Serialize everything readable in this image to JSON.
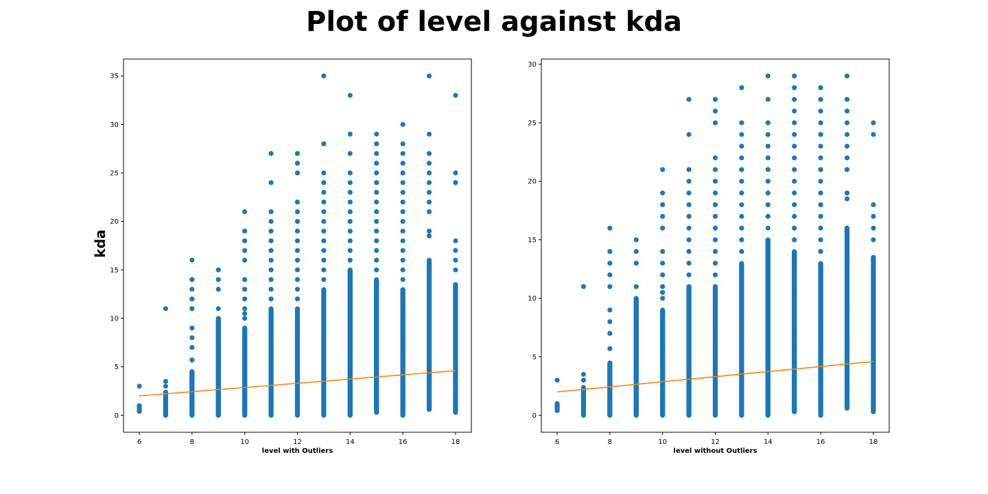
{
  "suptitle": "Plot of level against kda",
  "chart_data": [
    {
      "type": "scatter",
      "title": "",
      "xlabel": "level with Outliers",
      "ylabel": "kda",
      "xlim": [
        5.4,
        18.6
      ],
      "ylim": [
        -1.75,
        36.75
      ],
      "xticks": [
        6,
        8,
        10,
        12,
        14,
        16,
        18
      ],
      "yticks": [
        0,
        5,
        10,
        15,
        20,
        25,
        30,
        35
      ],
      "grid": false,
      "colors": {
        "points": "#1f77b4",
        "fit_line": "#ff7f0e"
      },
      "points": {
        "x": [
          6,
          7,
          8,
          9,
          10,
          11,
          12,
          13,
          14,
          15,
          16,
          17,
          18
        ],
        "y_columns": [
          {
            "range": [
              0.4,
              1.0
            ],
            "isolated": [
              3
            ]
          },
          {
            "range": [
              0,
              2.4
            ],
            "isolated": [
              3,
              3.5,
              11
            ]
          },
          {
            "range": [
              0,
              4.5
            ],
            "isolated": [
              5.7,
              7,
              8,
              9,
              11,
              12,
              13,
              14,
              16
            ]
          },
          {
            "range": [
              0,
              10
            ],
            "isolated": [
              11,
              13,
              14,
              15
            ]
          },
          {
            "range": [
              0,
              9
            ],
            "isolated": [
              10,
              10.5,
              11,
              12,
              13,
              14,
              16,
              17,
              18,
              19,
              21
            ]
          },
          {
            "range": [
              0,
              11
            ],
            "isolated": [
              12,
              13,
              14,
              15,
              16,
              17,
              18,
              19,
              20,
              21,
              24,
              27
            ]
          },
          {
            "range": [
              0,
              11
            ],
            "isolated": [
              12,
              13,
              14,
              15,
              16,
              17,
              18,
              19,
              20,
              21,
              22,
              25,
              26,
              27
            ]
          },
          {
            "range": [
              0,
              13
            ],
            "isolated": [
              14,
              15,
              16,
              17,
              18,
              19,
              20,
              21,
              22,
              23,
              24,
              25,
              28,
              35
            ]
          },
          {
            "range": [
              0,
              15
            ],
            "isolated": [
              16,
              17,
              18,
              19,
              20,
              21,
              22,
              23,
              24,
              25,
              27,
              29,
              33
            ]
          },
          {
            "range": [
              0.3,
              14
            ],
            "isolated": [
              15,
              16,
              17,
              18,
              19,
              20,
              21,
              22,
              23,
              24,
              25,
              26,
              27,
              28,
              29
            ]
          },
          {
            "range": [
              0,
              13
            ],
            "isolated": [
              14,
              15,
              16,
              17,
              18,
              19,
              20,
              21,
              22,
              23,
              24,
              25,
              26,
              27,
              28,
              30
            ]
          },
          {
            "range": [
              0.6,
              16
            ],
            "isolated": [
              18.5,
              19,
              21,
              22,
              23,
              24,
              25,
              26,
              27,
              29,
              35
            ]
          },
          {
            "range": [
              0.3,
              13.5
            ],
            "isolated": [
              15,
              16,
              17,
              18,
              24,
              25,
              33
            ]
          }
        ]
      },
      "fit_line": {
        "x": [
          6,
          18
        ],
        "y": [
          2.0,
          4.6
        ]
      }
    },
    {
      "type": "scatter",
      "title": "",
      "xlabel": "level without Outliers",
      "ylabel": "",
      "xlim": [
        5.4,
        18.6
      ],
      "ylim": [
        -1.45,
        30.45
      ],
      "xticks": [
        6,
        8,
        10,
        12,
        14,
        16,
        18
      ],
      "yticks": [
        0,
        5,
        10,
        15,
        20,
        25,
        30
      ],
      "grid": false,
      "colors": {
        "points": "#1f77b4",
        "fit_line": "#ff7f0e"
      },
      "points": {
        "x": [
          6,
          7,
          8,
          9,
          10,
          11,
          12,
          13,
          14,
          15,
          16,
          17,
          18
        ],
        "y_columns": [
          {
            "range": [
              0.4,
              1.0
            ],
            "isolated": [
              3
            ]
          },
          {
            "range": [
              0,
              2.4
            ],
            "isolated": [
              3,
              3.5,
              11
            ]
          },
          {
            "range": [
              0,
              4.5
            ],
            "isolated": [
              5.7,
              7,
              8,
              9,
              11,
              12,
              13,
              14,
              16
            ]
          },
          {
            "range": [
              0,
              10
            ],
            "isolated": [
              11,
              13,
              14,
              15
            ]
          },
          {
            "range": [
              0,
              9
            ],
            "isolated": [
              10,
              10.5,
              11,
              12,
              13,
              14,
              16,
              17,
              18,
              19,
              21
            ]
          },
          {
            "range": [
              0,
              11
            ],
            "isolated": [
              12,
              13,
              14,
              15,
              16,
              17,
              18,
              19,
              20,
              21,
              24,
              27
            ]
          },
          {
            "range": [
              0,
              11
            ],
            "isolated": [
              12,
              13,
              14,
              15,
              16,
              17,
              18,
              19,
              20,
              21,
              22,
              25,
              26,
              27
            ]
          },
          {
            "range": [
              0,
              13
            ],
            "isolated": [
              14,
              15,
              16,
              17,
              18,
              19,
              20,
              21,
              22,
              23,
              24,
              25,
              28
            ]
          },
          {
            "range": [
              0,
              15
            ],
            "isolated": [
              16,
              17,
              18,
              19,
              20,
              21,
              22,
              23,
              24,
              25,
              27,
              29
            ]
          },
          {
            "range": [
              0.3,
              14
            ],
            "isolated": [
              15,
              16,
              17,
              18,
              19,
              20,
              21,
              22,
              23,
              24,
              25,
              26,
              27,
              28,
              29
            ]
          },
          {
            "range": [
              0,
              13
            ],
            "isolated": [
              14,
              15,
              16,
              17,
              18,
              19,
              20,
              21,
              22,
              23,
              24,
              25,
              26,
              27,
              28
            ]
          },
          {
            "range": [
              0.6,
              16
            ],
            "isolated": [
              18.5,
              19,
              21,
              22,
              23,
              24,
              25,
              26,
              27,
              29
            ]
          },
          {
            "range": [
              0.3,
              13.5
            ],
            "isolated": [
              15,
              16,
              17,
              18,
              24,
              25
            ]
          }
        ]
      },
      "fit_line": {
        "x": [
          6,
          18
        ],
        "y": [
          2.0,
          4.6
        ]
      }
    }
  ]
}
